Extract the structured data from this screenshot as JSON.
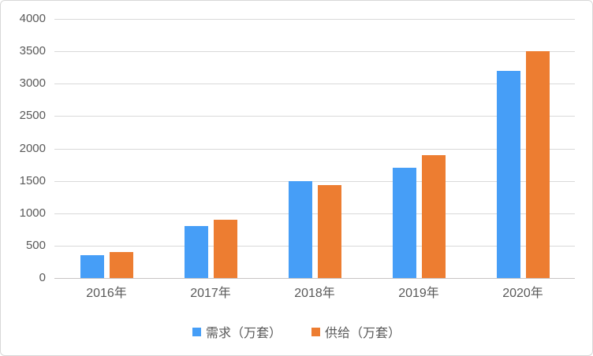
{
  "chart_data": {
    "type": "bar",
    "title": "",
    "categories": [
      "2016年",
      "2017年",
      "2018年",
      "2019年",
      "2020年"
    ],
    "category_keys": [
      "2016",
      "2017",
      "2018",
      "2019",
      "2020"
    ],
    "series": [
      {
        "key": "demand",
        "name": "需求（万套）",
        "color": "#469ef7",
        "values": [
          350,
          800,
          1500,
          1700,
          3200
        ]
      },
      {
        "key": "supply",
        "name": "供给（万套）",
        "color": "#ed7d31",
        "values": [
          400,
          900,
          1430,
          1900,
          3500
        ]
      }
    ],
    "ylim": [
      0,
      4000
    ],
    "ytick_step": 500,
    "yticks": [
      0,
      500,
      1000,
      1500,
      2000,
      2500,
      3000,
      3500,
      4000
    ],
    "xlabel": "",
    "ylabel": "",
    "grid": "horizontal",
    "legend_position": "bottom"
  },
  "colors": {
    "grid": "#d9d9d9",
    "axis": "#c7c5c5",
    "text": "#595959",
    "frame_border": "#d8d8d8",
    "background": "#ffffff"
  }
}
